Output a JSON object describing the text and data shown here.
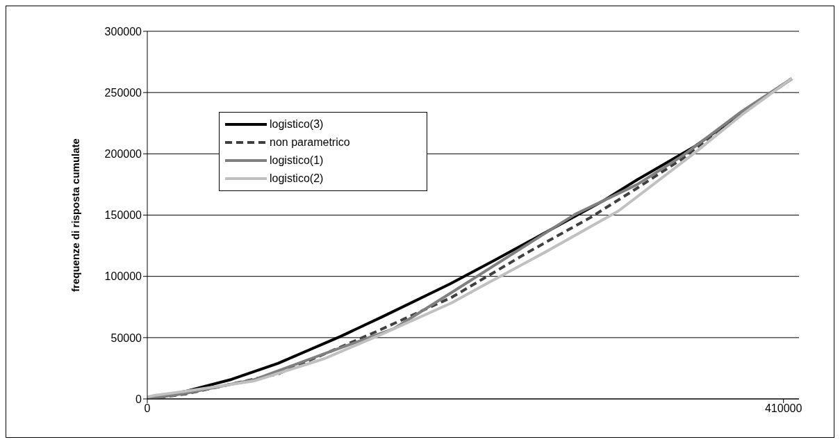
{
  "chart_data": {
    "type": "line",
    "ylabel": "frequenze di risposta cumulate",
    "xlim": [
      0,
      420000
    ],
    "xticks": [
      0,
      410000
    ],
    "ylim": [
      0,
      300000
    ],
    "yticks": [
      0,
      50000,
      100000,
      150000,
      200000,
      250000,
      300000
    ],
    "grid": "y",
    "legend": "top left",
    "marker": "none",
    "series": [
      {
        "name": "logistico(3)",
        "color": "#000000",
        "line_style": "solid",
        "x": [
          0,
          4500,
          24600,
          54200,
          84200,
          124500,
          151400,
          194900,
          224400,
          255800,
          294800,
          315800,
          353000,
          383000,
          415300
        ],
        "values": [
          0,
          600,
          6200,
          15900,
          29000,
          51000,
          67000,
          93700,
          113600,
          135200,
          162400,
          178900,
          206200,
          232900,
          261300
        ]
      },
      {
        "name": "non parametrico",
        "color": "#404040",
        "line_style": "dashed",
        "x": [
          0,
          24600,
          84200,
          143800,
          196200,
          245500,
          285800,
          315800,
          345400,
          383000,
          415300
        ],
        "values": [
          0,
          4000,
          20400,
          52800,
          82900,
          119800,
          148200,
          172100,
          196500,
          234000,
          261300
        ]
      },
      {
        "name": "logistico(1)",
        "color": "#808080",
        "line_style": "solid",
        "x": [
          0,
          24600,
          69400,
          114200,
          159000,
          196200,
          275500,
          315800,
          345400,
          383000,
          415300
        ],
        "values": [
          0,
          4500,
          15900,
          36900,
          57400,
          86900,
          150500,
          175000,
          198800,
          234600,
          261300
        ]
      },
      {
        "name": "logistico(2)",
        "color": "#c0c0c0",
        "line_style": "solid",
        "x": [
          0,
          4500,
          24600,
          69400,
          114200,
          151400,
          196200,
          214100,
          255800,
          303700,
          353000,
          383000,
          415300
        ],
        "values": [
          1500,
          2800,
          6200,
          14800,
          32900,
          53000,
          78400,
          90900,
          119300,
          153400,
          201000,
          231700,
          261300
        ]
      }
    ]
  }
}
